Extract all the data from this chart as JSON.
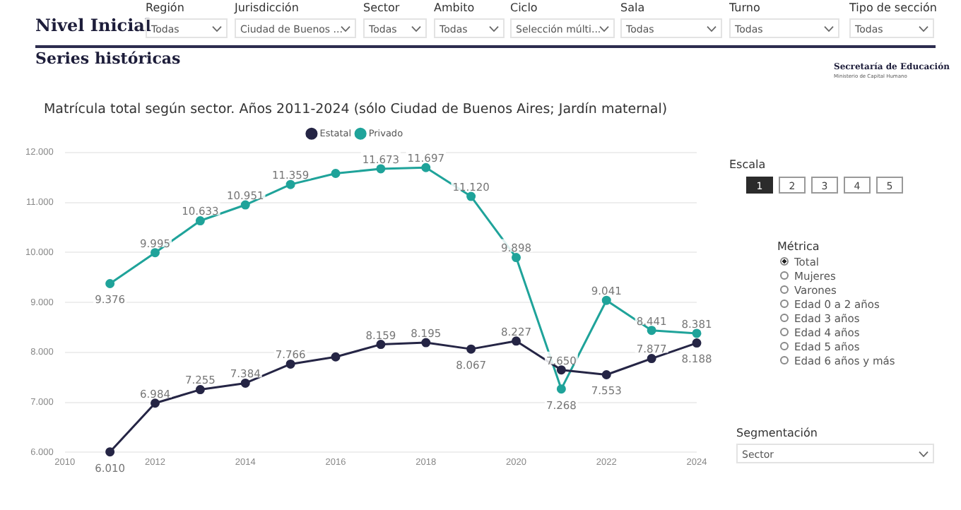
{
  "chart_data": {
    "type": "line",
    "title": "Matrícula total según sector. Años 2011-2024 (sólo Ciudad de Buenos Aires; Jardín maternal)",
    "x": [
      2011,
      2012,
      2013,
      2014,
      2015,
      2016,
      2017,
      2018,
      2019,
      2020,
      2021,
      2022,
      2023,
      2024
    ],
    "series": [
      {
        "name": "Estatal",
        "color": "#252545",
        "values": [
          6010,
          6984,
          7255,
          7384,
          7766,
          7910,
          8159,
          8195,
          8067,
          8227,
          7650,
          7553,
          7877,
          8188
        ],
        "value_labels": [
          "6.010",
          "6.984",
          "7.255",
          "7.384",
          "7.766",
          null,
          "8.159",
          "8.195",
          "8.067",
          "8.227",
          "7.650",
          "7.553",
          "7.877",
          "8.188"
        ]
      },
      {
        "name": "Privado",
        "color": "#1fa39a",
        "values": [
          9376,
          9995,
          10633,
          10951,
          11359,
          11580,
          11673,
          11697,
          11120,
          9898,
          7268,
          9041,
          8441,
          8381
        ],
        "value_labels": [
          "9.376",
          "9.995",
          "10.633",
          "10.951",
          "11.359",
          null,
          "11.673",
          "11.697",
          "11.120",
          "9.898",
          "7.268",
          "9.041",
          "8.441",
          "8.381"
        ]
      }
    ],
    "xlim": [
      2010,
      2024
    ],
    "xticks": [
      2010,
      2012,
      2014,
      2016,
      2018,
      2020,
      2022,
      2024
    ],
    "ylim": [
      6000,
      12000
    ],
    "yticks": [
      {
        "value": 6000,
        "label": "6.000"
      },
      {
        "value": 7000,
        "label": "7.000"
      },
      {
        "value": 8000,
        "label": "8.000"
      },
      {
        "value": 9000,
        "label": "9.000"
      },
      {
        "value": 10000,
        "label": "10.000"
      },
      {
        "value": 11000,
        "label": "11.000"
      },
      {
        "value": 12000,
        "label": "12.000"
      }
    ],
    "grid": "y",
    "legend": "top",
    "marker": "circle",
    "line_style": "solid",
    "annotations": [
      "Nivel Inicial",
      "Región",
      "Todas",
      "Jurisdicción",
      "Ciudad de Buenos ...",
      "Sector",
      "Todas",
      "Ambito",
      "Todas",
      "Ciclo",
      "Selección múlti...",
      "Sala",
      "Todas",
      "Turno",
      "Todas",
      "Tipo de sección",
      "Todas",
      "Series históricas",
      "Secretaría de Educación",
      "Ministerio de Capital Humano",
      "Escala",
      "1",
      "2",
      "3",
      "4",
      "5",
      "Métrica",
      "Total",
      "Mujeres",
      "Varones",
      "Edad 0 a 2 años",
      "Edad 3 años",
      "Edad 4 años",
      "Edad 5 años",
      "Edad 6 años y más",
      "Segmentación",
      "Sector"
    ]
  }
}
